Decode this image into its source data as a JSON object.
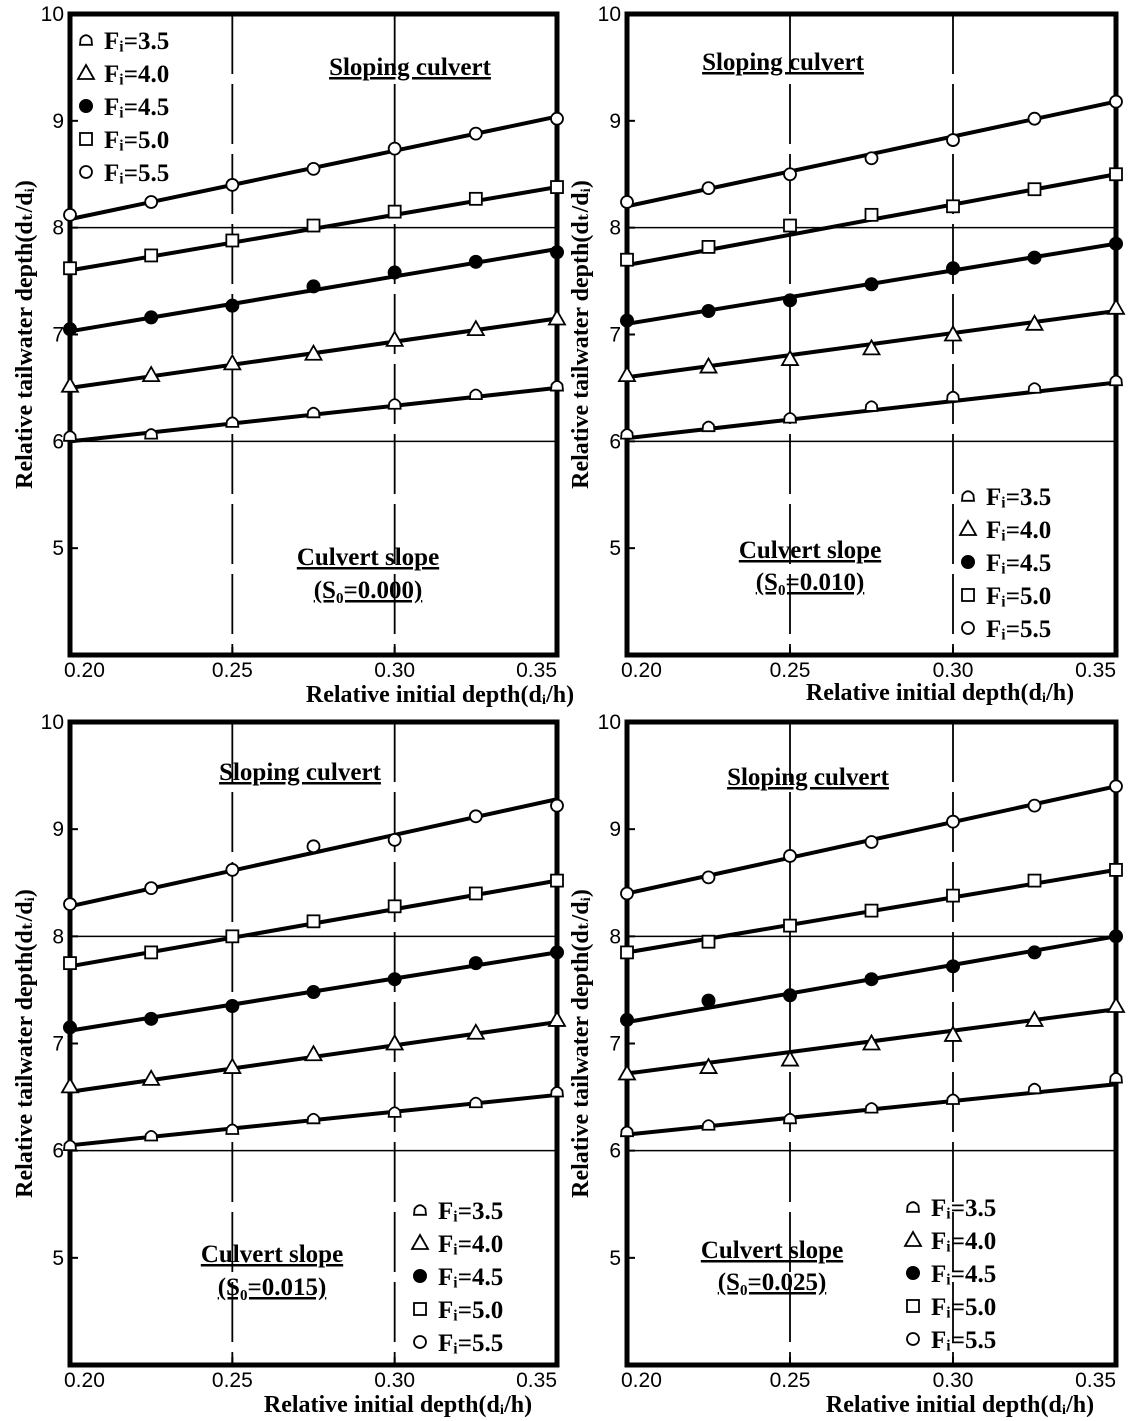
{
  "chart_data": [
    {
      "type": "scatter",
      "title": "Sloping culvert",
      "slope_label": "Culvert slope",
      "slope_value": "(S₀=0.000)",
      "xlabel": "Relative initial depth(dᵢ/h)",
      "ylabel": "Relative tailwater depth(dₜ/dᵢ)",
      "xlim": [
        0.2,
        0.35
      ],
      "ylim": [
        4.0,
        10.0
      ],
      "x_ticks": [
        "0.20",
        "0.25",
        "0.30",
        "0.35"
      ],
      "y_ticks": [
        "5",
        "6",
        "7",
        "8",
        "9",
        "10"
      ],
      "legend_position": "top-left",
      "x": [
        0.2,
        0.225,
        0.25,
        0.275,
        0.3,
        0.325,
        0.35
      ],
      "series": [
        {
          "name": "Fᵢ=3.5",
          "marker": "tri-open-small",
          "values": [
            6.05,
            6.07,
            6.18,
            6.27,
            6.35,
            6.44,
            6.52
          ],
          "fit": [
            6.0,
            6.5
          ]
        },
        {
          "name": "Fᵢ=4.0",
          "marker": "tri-open",
          "values": [
            6.52,
            6.62,
            6.73,
            6.82,
            6.95,
            7.05,
            7.15
          ],
          "fit": [
            6.5,
            7.15
          ]
        },
        {
          "name": "Fᵢ=4.5",
          "marker": "circle-filled",
          "values": [
            7.05,
            7.16,
            7.27,
            7.45,
            7.58,
            7.68,
            7.77
          ],
          "fit": [
            7.03,
            7.8
          ]
        },
        {
          "name": "Fᵢ=5.0",
          "marker": "square-open",
          "values": [
            7.62,
            7.74,
            7.88,
            8.02,
            8.15,
            8.27,
            8.38
          ],
          "fit": [
            7.6,
            8.38
          ]
        },
        {
          "name": "Fᵢ=5.5",
          "marker": "circle-open",
          "values": [
            8.12,
            8.24,
            8.4,
            8.55,
            8.74,
            8.88,
            9.02
          ],
          "fit": [
            8.08,
            9.04
          ]
        }
      ]
    },
    {
      "type": "scatter",
      "title": "Sloping culvert",
      "slope_label": "Culvert slope",
      "slope_value": "(S₀=0.010)",
      "xlabel": "Relative initial depth(dᵢ/h)",
      "ylabel": "Relative tailwater depth(dₜ/dᵢ)",
      "xlim": [
        0.2,
        0.35
      ],
      "ylim": [
        4.0,
        10.0
      ],
      "x_ticks": [
        "0.20",
        "0.25",
        "0.30",
        "0.35"
      ],
      "y_ticks": [
        "5",
        "6",
        "7",
        "8",
        "9",
        "10"
      ],
      "legend_position": "bottom-right",
      "x": [
        0.2,
        0.225,
        0.25,
        0.275,
        0.3,
        0.325,
        0.35
      ],
      "series": [
        {
          "name": "Fᵢ=3.5",
          "marker": "tri-open-small",
          "values": [
            6.07,
            6.14,
            6.22,
            6.33,
            6.42,
            6.5,
            6.57
          ],
          "fit": [
            6.03,
            6.55
          ]
        },
        {
          "name": "Fᵢ=4.0",
          "marker": "tri-open",
          "values": [
            6.62,
            6.7,
            6.77,
            6.87,
            7.0,
            7.1,
            7.25
          ],
          "fit": [
            6.6,
            7.22
          ]
        },
        {
          "name": "Fᵢ=4.5",
          "marker": "circle-filled",
          "values": [
            7.13,
            7.22,
            7.32,
            7.47,
            7.62,
            7.72,
            7.85
          ],
          "fit": [
            7.1,
            7.85
          ]
        },
        {
          "name": "Fᵢ=5.0",
          "marker": "square-open",
          "values": [
            7.7,
            7.82,
            8.02,
            8.12,
            8.2,
            8.36,
            8.5
          ],
          "fit": [
            7.65,
            8.5
          ]
        },
        {
          "name": "Fᵢ=5.5",
          "marker": "circle-open",
          "values": [
            8.24,
            8.37,
            8.5,
            8.65,
            8.82,
            9.02,
            9.18
          ],
          "fit": [
            8.2,
            9.18
          ]
        }
      ]
    },
    {
      "type": "scatter",
      "title": "Sloping culvert",
      "slope_label": "Culvert slope",
      "slope_value": "(S₀=0.015)",
      "xlabel": "Relative initial depth(dᵢ/h)",
      "ylabel": "Relative tailwater depth(dₜ/dᵢ)",
      "xlim": [
        0.2,
        0.35
      ],
      "ylim": [
        4.0,
        10.0
      ],
      "x_ticks": [
        "0.20",
        "0.25",
        "0.30",
        "0.35"
      ],
      "y_ticks": [
        "5",
        "6",
        "7",
        "8",
        "9",
        "10"
      ],
      "legend_position": "bottom-right",
      "x": [
        0.2,
        0.225,
        0.25,
        0.275,
        0.3,
        0.325,
        0.35
      ],
      "series": [
        {
          "name": "Fᵢ=3.5",
          "marker": "tri-open-small",
          "values": [
            6.05,
            6.14,
            6.2,
            6.3,
            6.36,
            6.45,
            6.55
          ],
          "fit": [
            6.05,
            6.52
          ]
        },
        {
          "name": "Fᵢ=4.0",
          "marker": "tri-open",
          "values": [
            6.6,
            6.67,
            6.78,
            6.9,
            7.0,
            7.1,
            7.22
          ],
          "fit": [
            6.55,
            7.2
          ]
        },
        {
          "name": "Fᵢ=4.5",
          "marker": "circle-filled",
          "values": [
            7.15,
            7.23,
            7.35,
            7.48,
            7.6,
            7.75,
            7.85
          ],
          "fit": [
            7.12,
            7.85
          ]
        },
        {
          "name": "Fᵢ=5.0",
          "marker": "square-open",
          "values": [
            7.75,
            7.85,
            8.0,
            8.14,
            8.28,
            8.4,
            8.52
          ],
          "fit": [
            7.72,
            8.52
          ]
        },
        {
          "name": "Fᵢ=5.5",
          "marker": "circle-open",
          "values": [
            8.3,
            8.45,
            8.62,
            8.84,
            8.9,
            9.12,
            9.22
          ],
          "fit": [
            8.28,
            9.28
          ]
        }
      ]
    },
    {
      "type": "scatter",
      "title": "Sloping culvert",
      "slope_label": "Culvert slope",
      "slope_value": "(S₀=0.025)",
      "xlabel": "Relative initial depth(dᵢ/h)",
      "ylabel": "Relative tailwater depth(dₜ/dᵢ)",
      "xlim": [
        0.2,
        0.35
      ],
      "ylim": [
        4.0,
        10.0
      ],
      "x_ticks": [
        "0.20",
        "0.25",
        "0.30",
        "0.35"
      ],
      "y_ticks": [
        "5",
        "6",
        "7",
        "8",
        "9",
        "10"
      ],
      "legend_position": "bottom-right",
      "x": [
        0.2,
        0.225,
        0.25,
        0.275,
        0.3,
        0.325,
        0.35
      ],
      "series": [
        {
          "name": "Fᵢ=3.5",
          "marker": "tri-open-small",
          "values": [
            6.18,
            6.24,
            6.3,
            6.4,
            6.48,
            6.58,
            6.68
          ],
          "fit": [
            6.15,
            6.62
          ]
        },
        {
          "name": "Fᵢ=4.0",
          "marker": "tri-open",
          "values": [
            6.72,
            6.78,
            6.85,
            7.0,
            7.08,
            7.22,
            7.35
          ],
          "fit": [
            6.72,
            7.32
          ]
        },
        {
          "name": "Fᵢ=4.5",
          "marker": "circle-filled",
          "values": [
            7.22,
            7.4,
            7.45,
            7.6,
            7.72,
            7.85,
            8.0
          ],
          "fit": [
            7.2,
            8.0
          ]
        },
        {
          "name": "Fᵢ=5.0",
          "marker": "square-open",
          "values": [
            7.85,
            7.95,
            8.1,
            8.24,
            8.38,
            8.52,
            8.62
          ],
          "fit": [
            7.85,
            8.62
          ]
        },
        {
          "name": "Fᵢ=5.5",
          "marker": "circle-open",
          "values": [
            8.4,
            8.55,
            8.75,
            8.88,
            9.07,
            9.22,
            9.4
          ],
          "fit": [
            8.4,
            9.4
          ]
        }
      ]
    }
  ]
}
